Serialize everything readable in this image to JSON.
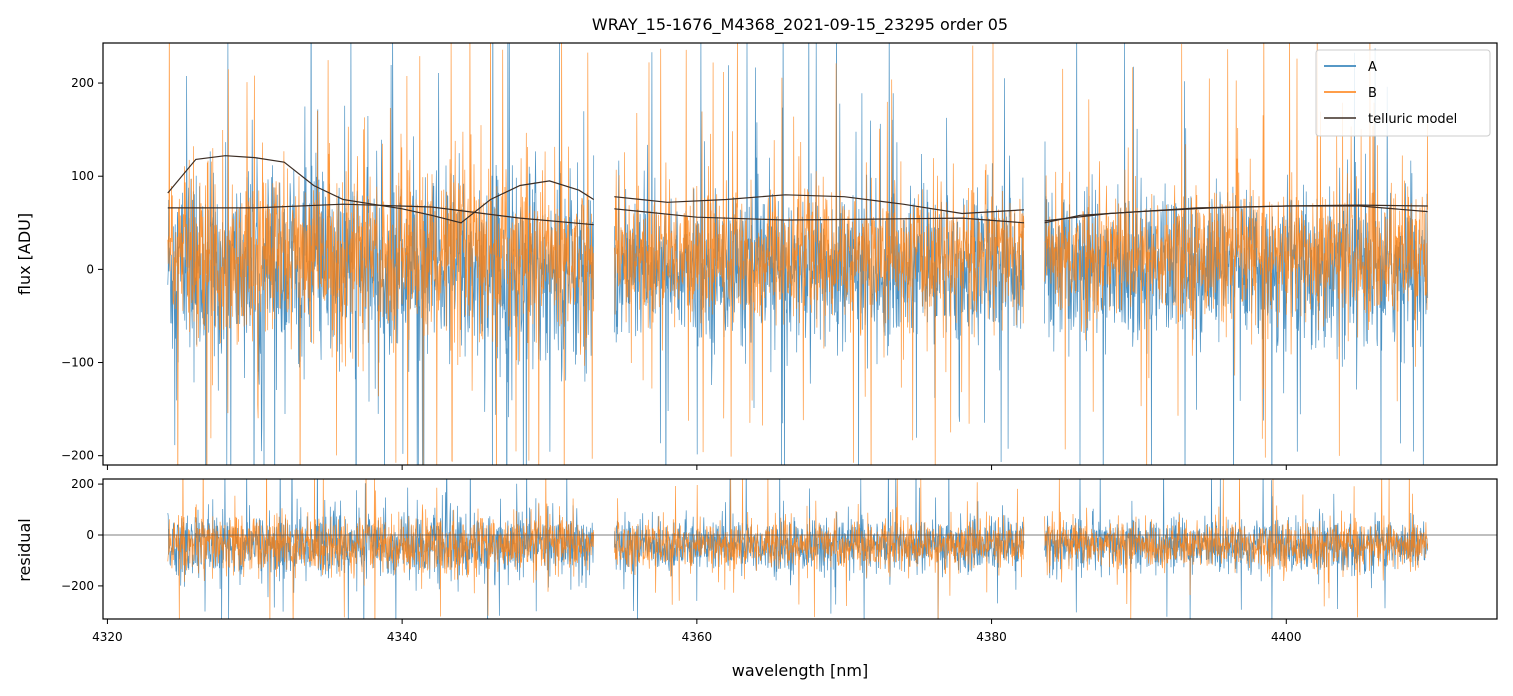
{
  "chart_data": {
    "type": "line",
    "title": "WRAY_15-1676_M4368_2021-09-15_23295  order 05",
    "xlabel": "wavelength [nm]",
    "xlim": [
      4319.7,
      4414.3
    ],
    "x_ticks": [
      4320,
      4340,
      4360,
      4380,
      4400
    ],
    "x_tick_labels": [
      "4320",
      "4340",
      "4360",
      "4380",
      "4400"
    ],
    "colors": {
      "A": "#1f77b4",
      "B": "#ff7f0e",
      "telluric": "#3b2d24",
      "zero_line": "#555555"
    },
    "legend": {
      "placement": "top-right",
      "entries": [
        "A",
        "B",
        "telluric model"
      ]
    },
    "segments": [
      {
        "x_start": 4324.1,
        "x_end": 4353.0
      },
      {
        "x_start": 4354.4,
        "x_end": 4382.2
      },
      {
        "x_start": 4383.6,
        "x_end": 4409.6
      }
    ],
    "panels": {
      "flux": {
        "ylabel": "flux [ADU]",
        "ylim": [
          -210,
          243
        ],
        "y_ticks": [
          -200,
          -100,
          0,
          100,
          200
        ],
        "y_tick_labels": [
          "−200",
          "−100",
          "0",
          "100",
          "200"
        ],
        "series": [
          {
            "name": "A",
            "description_level": 0,
            "noise_amplitude": 75
          },
          {
            "name": "B",
            "description_level": 15,
            "noise_amplitude": 65
          }
        ],
        "telluric_model": [
          {
            "lines": [
              {
                "x": [
                  4324.1,
                  4326.0,
                  4328.0,
                  4330.0,
                  4332.0,
                  4334.0,
                  4336.0,
                  4338.0,
                  4340.0,
                  4342.0,
                  4344.0,
                  4346.0,
                  4348.0,
                  4350.0,
                  4352.0,
                  4353.0
                ],
                "y": [
                  82,
                  118,
                  122,
                  120,
                  115,
                  90,
                  75,
                  70,
                  65,
                  58,
                  50,
                  75,
                  90,
                  95,
                  85,
                  75
                ]
              },
              {
                "x": [
                  4324.1,
                  4330.0,
                  4336.0,
                  4342.0,
                  4348.0,
                  4353.0
                ],
                "y": [
                  66,
                  66,
                  70,
                  67,
                  55,
                  48
                ]
              }
            ]
          },
          {
            "lines": [
              {
                "x": [
                  4354.4,
                  4358.0,
                  4362.0,
                  4366.0,
                  4370.0,
                  4374.0,
                  4378.0,
                  4382.2
                ],
                "y": [
                  78,
                  72,
                  75,
                  80,
                  78,
                  70,
                  60,
                  64
                ]
              },
              {
                "x": [
                  4354.4,
                  4360.0,
                  4366.0,
                  4372.0,
                  4378.0,
                  4382.2
                ],
                "y": [
                  65,
                  56,
                  53,
                  54,
                  55,
                  50
                ]
              }
            ]
          },
          {
            "lines": [
              {
                "x": [
                  4383.6,
                  4386.0,
                  4390.0,
                  4395.0,
                  4400.0,
                  4405.0,
                  4409.6
                ],
                "y": [
                  50,
                  58,
                  62,
                  66,
                  68,
                  68,
                  62
                ]
              },
              {
                "x": [
                  4383.6,
                  4388.0,
                  4394.0,
                  4400.0,
                  4405.0,
                  4409.6
                ],
                "y": [
                  52,
                  60,
                  66,
                  68,
                  69,
                  68
                ]
              }
            ]
          }
        ]
      },
      "residual": {
        "ylabel": "residual",
        "ylim": [
          -330,
          220
        ],
        "y_ticks": [
          -200,
          0,
          200
        ],
        "y_tick_labels": [
          "−200",
          "0",
          "200"
        ],
        "zero_line": 0,
        "series": [
          {
            "name": "A",
            "description_level": -40,
            "noise_amplitude": 95
          },
          {
            "name": "B",
            "description_level": -40,
            "noise_amplitude": 85
          }
        ]
      }
    }
  }
}
